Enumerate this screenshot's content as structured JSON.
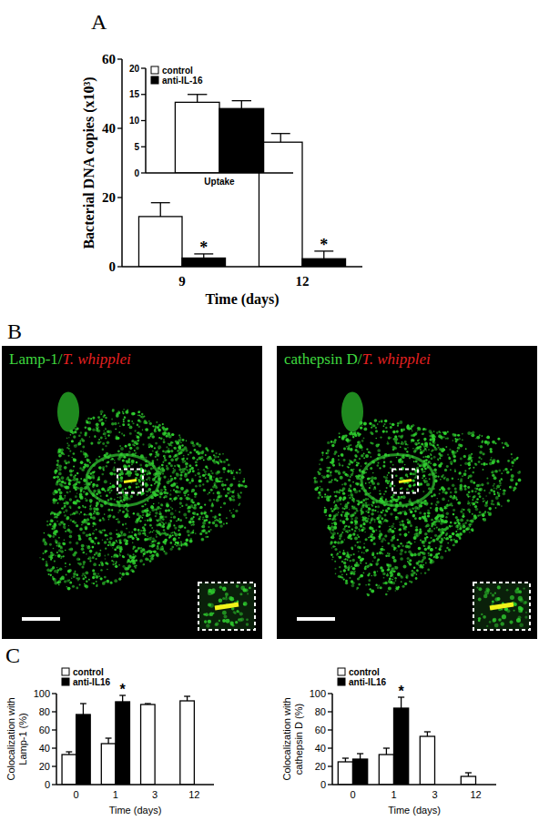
{
  "panel_labels": [
    "A",
    "B",
    "C"
  ],
  "images": [
    {
      "label_parts": [
        "Lamp-1/",
        "T. whipplei"
      ]
    },
    {
      "label_parts": [
        "cathepsin D/",
        "T. whipplei"
      ]
    }
  ],
  "chart_data": [
    {
      "type": "bar",
      "xlabel": "Time (days)",
      "ylabel": "Bacterial DNA copies (x10³)",
      "categories": [
        "9",
        "12"
      ],
      "ylim": [
        0,
        60
      ],
      "yticks": [
        0,
        20,
        40,
        60
      ],
      "series": [
        {
          "color": "#ffffff",
          "values": [
            14.5,
            36
          ],
          "errors": [
            4,
            2.5
          ]
        },
        {
          "color": "#000000",
          "values": [
            2.5,
            2.3
          ],
          "errors": [
            1.2,
            2.2
          ]
        }
      ],
      "annotations": [
        {
          "text": "*",
          "series": 1,
          "index": 0
        },
        {
          "text": "*",
          "series": 1,
          "index": 1
        }
      ]
    },
    {
      "type": "bar",
      "categories": [
        "Uptake"
      ],
      "ylim": [
        0,
        20
      ],
      "yticks": [
        0,
        5,
        10,
        15,
        20
      ],
      "legend": "top left",
      "series": [
        {
          "name": "control",
          "color": "#ffffff",
          "values": [
            13.5
          ],
          "errors": [
            1.5
          ]
        },
        {
          "name": "anti-IL-16",
          "color": "#000000",
          "values": [
            12.3
          ],
          "errors": [
            1.5
          ]
        }
      ]
    },
    {
      "type": "bar",
      "xlabel": "Time (days)",
      "ylabel": "Colocalization with Lamp-1 (%)",
      "categories": [
        "0",
        "1",
        "3",
        "12"
      ],
      "ylim": [
        0,
        100
      ],
      "yticks": [
        0,
        20,
        40,
        60,
        80,
        100
      ],
      "legend": "top left",
      "series": [
        {
          "name": "control",
          "color": "#ffffff",
          "values": [
            33,
            45,
            88,
            92
          ],
          "errors": [
            3,
            6,
            1,
            5
          ]
        },
        {
          "name": "anti-IL16",
          "color": "#000000",
          "values": [
            77,
            91,
            null,
            null
          ],
          "errors": [
            12,
            7,
            null,
            null
          ]
        }
      ],
      "annotations": [
        {
          "text": "*",
          "series": 1,
          "index": 1
        }
      ]
    },
    {
      "type": "bar",
      "xlabel": "Time (days)",
      "ylabel": "Colocalization with cathepsin D (%)",
      "categories": [
        "0",
        "1",
        "3",
        "12"
      ],
      "ylim": [
        0,
        100
      ],
      "yticks": [
        0,
        20,
        40,
        60,
        80,
        100
      ],
      "legend": "top left",
      "series": [
        {
          "name": "control",
          "color": "#ffffff",
          "values": [
            25,
            33,
            53,
            9
          ],
          "errors": [
            4,
            7,
            5,
            4
          ]
        },
        {
          "name": "anti-IL16",
          "color": "#000000",
          "values": [
            28,
            84,
            null,
            null
          ],
          "errors": [
            6,
            12,
            null,
            null
          ]
        }
      ],
      "annotations": [
        {
          "text": "*",
          "series": 1,
          "index": 1
        }
      ]
    }
  ]
}
